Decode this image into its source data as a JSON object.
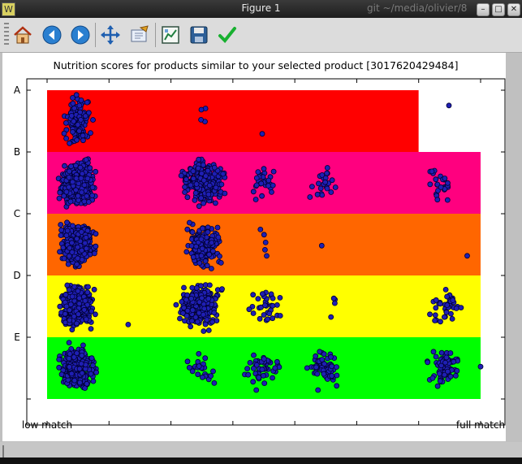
{
  "window": {
    "title": "Figure 1",
    "background_window_text": "git ~/media/olivier/8"
  },
  "toolbar": {
    "buttons": [
      {
        "name": "home-icon",
        "tooltip": "Home"
      },
      {
        "name": "back-arrow-icon",
        "tooltip": "Back"
      },
      {
        "name": "forward-arrow-icon",
        "tooltip": "Forward"
      },
      {
        "name": "pan-icon",
        "tooltip": "Pan"
      },
      {
        "name": "zoom-icon",
        "tooltip": "Zoom"
      },
      {
        "name": "subplots-icon",
        "tooltip": "Subplots"
      },
      {
        "name": "save-icon",
        "tooltip": "Save"
      },
      {
        "name": "edit-check-icon",
        "tooltip": "Edit"
      }
    ]
  },
  "colors": {
    "A": "#ff0000",
    "B": "#ff007f",
    "C": "#ff6600",
    "D": "#ffff00",
    "E": "#00ff00",
    "points_fill": "#1f1fb4",
    "points_edge": "#000033"
  },
  "chart_data": {
    "type": "scatter",
    "title": "Nutrition scores for products similar to your selected product [3017620429484]",
    "xlabel": "",
    "ylabel": "",
    "x_tick_labels": [
      "low match",
      "",
      "",
      "",
      "",
      "",
      "",
      "full match"
    ],
    "x_range": [
      0,
      1
    ],
    "y_tick_labels": [
      "A",
      "B",
      "C",
      "D",
      "E",
      ""
    ],
    "y_range": [
      0,
      5
    ],
    "grid": false,
    "legend": "none",
    "bands": [
      {
        "grade": "A",
        "x_min": 0.0,
        "x_max": 0.857
      },
      {
        "grade": "B",
        "x_min": 0.0,
        "x_max": 1.0
      },
      {
        "grade": "C",
        "x_min": 0.0,
        "x_max": 1.0
      },
      {
        "grade": "D",
        "x_min": 0.0,
        "x_max": 1.0
      },
      {
        "grade": "E",
        "x_min": 0.0,
        "x_max": 1.0
      }
    ],
    "clusters": [
      {
        "grade": "A",
        "x": 0.07,
        "x_spread": 0.04,
        "count": 140
      },
      {
        "grade": "A",
        "x": 0.35,
        "x_spread": 0.02,
        "count": 4
      },
      {
        "grade": "A",
        "x": 0.5,
        "x_spread": 0.01,
        "count": 1
      },
      {
        "grade": "A",
        "x": 0.93,
        "x_spread": 0.01,
        "count": 1
      },
      {
        "grade": "B",
        "x": 0.07,
        "x_spread": 0.05,
        "count": 420
      },
      {
        "grade": "B",
        "x": 0.36,
        "x_spread": 0.06,
        "count": 260
      },
      {
        "grade": "B",
        "x": 0.5,
        "x_spread": 0.04,
        "count": 28
      },
      {
        "grade": "B",
        "x": 0.64,
        "x_spread": 0.04,
        "count": 22
      },
      {
        "grade": "B",
        "x": 0.91,
        "x_spread": 0.04,
        "count": 26
      },
      {
        "grade": "C",
        "x": 0.07,
        "x_spread": 0.05,
        "count": 330
      },
      {
        "grade": "C",
        "x": 0.36,
        "x_spread": 0.05,
        "count": 170
      },
      {
        "grade": "C",
        "x": 0.5,
        "x_spread": 0.02,
        "count": 5
      },
      {
        "grade": "C",
        "x": 0.64,
        "x_spread": 0.01,
        "count": 1
      },
      {
        "grade": "C",
        "x": 0.97,
        "x_spread": 0.01,
        "count": 1
      },
      {
        "grade": "D",
        "x": 0.07,
        "x_spread": 0.05,
        "count": 380
      },
      {
        "grade": "D",
        "x": 0.35,
        "x_spread": 0.06,
        "count": 300
      },
      {
        "grade": "D",
        "x": 0.5,
        "x_spread": 0.05,
        "count": 32
      },
      {
        "grade": "D",
        "x": 0.66,
        "x_spread": 0.02,
        "count": 4
      },
      {
        "grade": "D",
        "x": 0.92,
        "x_spread": 0.05,
        "count": 40
      },
      {
        "grade": "D",
        "x": 0.18,
        "x_spread": 0.01,
        "count": 1
      },
      {
        "grade": "E",
        "x": 0.07,
        "x_spread": 0.05,
        "count": 300
      },
      {
        "grade": "E",
        "x": 0.36,
        "x_spread": 0.06,
        "count": 24
      },
      {
        "grade": "E",
        "x": 0.5,
        "x_spread": 0.06,
        "count": 45
      },
      {
        "grade": "E",
        "x": 0.64,
        "x_spread": 0.05,
        "count": 70
      },
      {
        "grade": "E",
        "x": 0.92,
        "x_spread": 0.05,
        "count": 75
      },
      {
        "grade": "E",
        "x": 1.0,
        "x_spread": 0.0,
        "count": 1
      }
    ]
  }
}
